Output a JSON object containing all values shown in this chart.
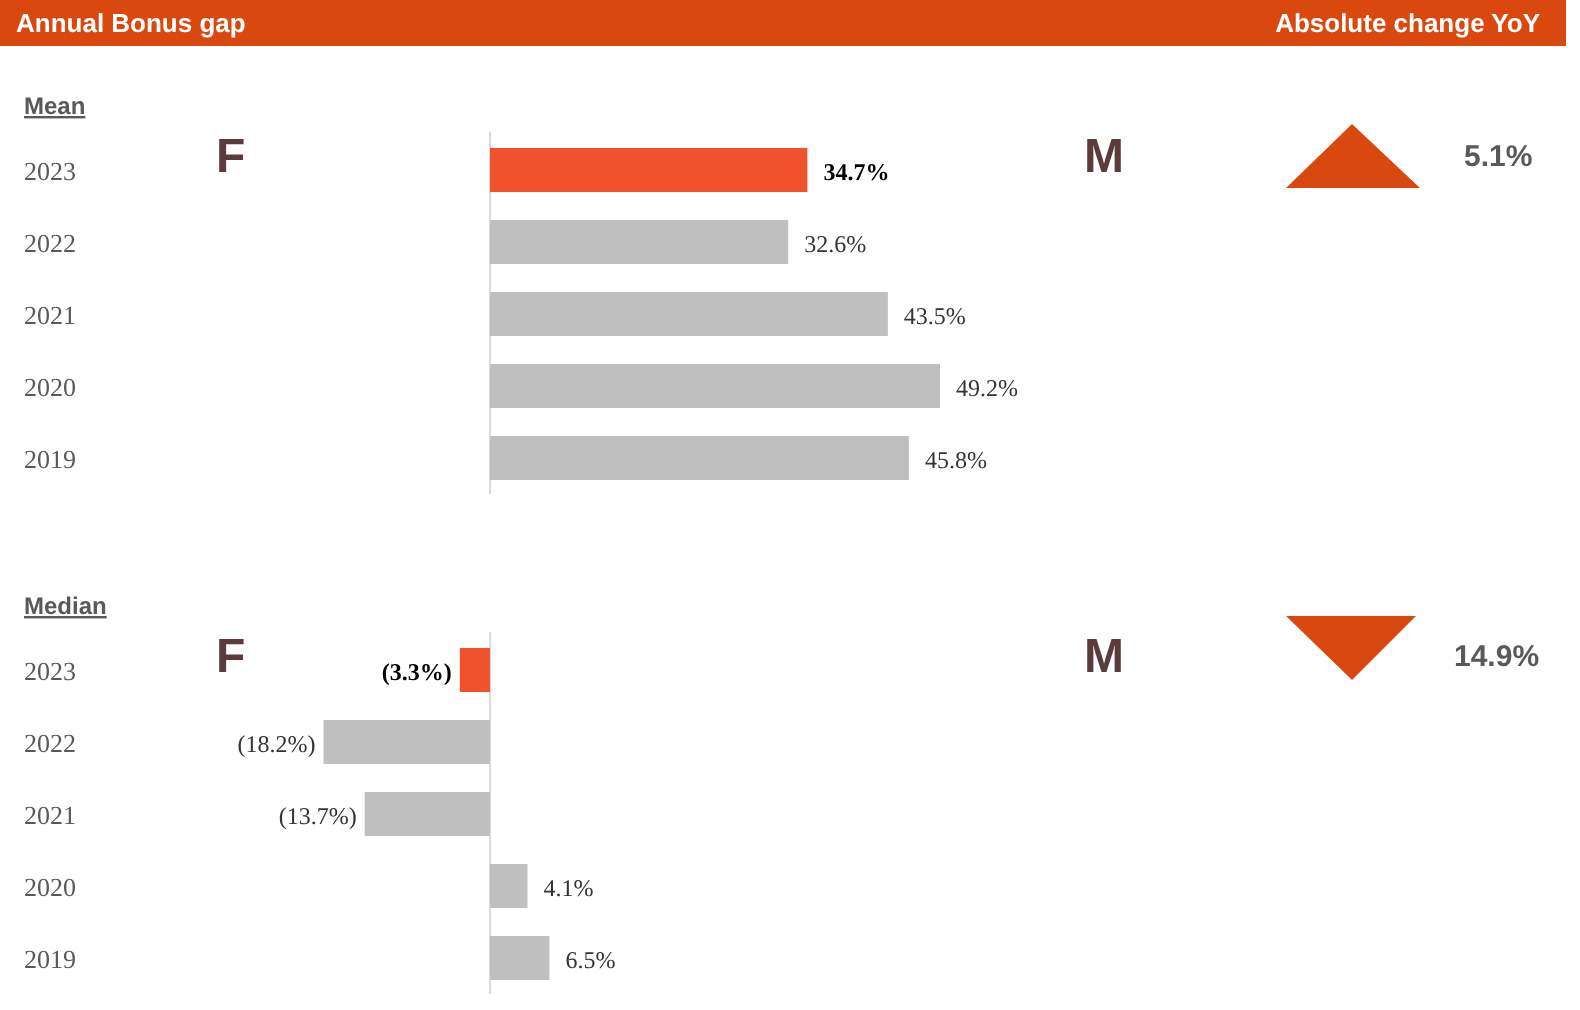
{
  "chart_data": [
    {
      "type": "bar",
      "orientation": "horizontal",
      "title": "Annual Bonus gap",
      "subtitle": "Mean",
      "categories": [
        "2023",
        "2022",
        "2021",
        "2020",
        "2019"
      ],
      "values": [
        34.7,
        32.6,
        43.5,
        49.2,
        45.8
      ],
      "colors": [
        "#f0532b",
        "#bfbfbf",
        "#bfbfbf",
        "#bfbfbf",
        "#bfbfbf"
      ],
      "value_labels": [
        "34.7%",
        "32.6%",
        "43.5%",
        "49.2%",
        "45.8%"
      ],
      "annotations": [
        "Absolute change YoY",
        "F",
        "M",
        "5.1%"
      ]
    },
    {
      "type": "bar",
      "orientation": "horizontal",
      "subtitle": "Median",
      "categories": [
        "2023",
        "2022",
        "2021",
        "2020",
        "2019"
      ],
      "values": [
        -3.3,
        -18.2,
        -13.7,
        4.1,
        6.5
      ],
      "colors": [
        "#f0532b",
        "#bfbfbf",
        "#bfbfbf",
        "#bfbfbf",
        "#bfbfbf"
      ],
      "value_labels": [
        "(3.3%)",
        "(18.2%)",
        "(13.7%)",
        "4.1%",
        "6.5%"
      ],
      "annotations": [
        "F",
        "M",
        "14.9%"
      ]
    }
  ]
}
